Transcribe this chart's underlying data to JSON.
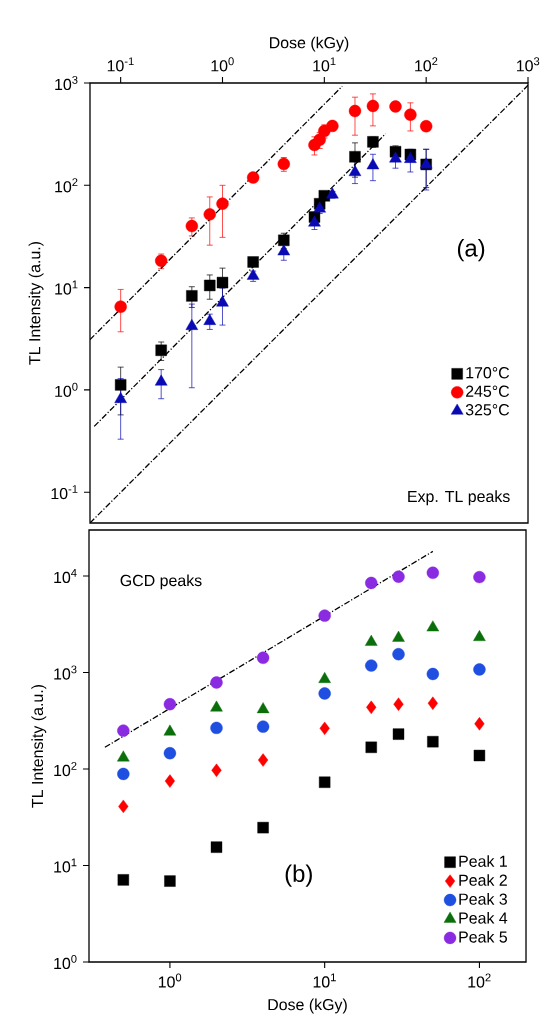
{
  "chart_data": [
    {
      "type": "scatter",
      "xlabel": "Dose (kGy)",
      "ylabel": "TL Intensity (a.u.)",
      "log": "xy",
      "xlim": [
        0.05,
        1000
      ],
      "ylim": [
        0.05,
        1000
      ],
      "xticks": [
        {
          "value": 0.1,
          "label": "10$^{-1}$"
        },
        {
          "value": 1,
          "label": "10$^{0}$"
        },
        {
          "value": 10,
          "label": "10$^{1}$"
        },
        {
          "value": 100,
          "label": "10$^{2}$"
        },
        {
          "value": 1000,
          "label": "10$^{3}$"
        }
      ],
      "yticks": [
        {
          "value": 0.1,
          "label": "10$^{-1}$"
        },
        {
          "value": 1,
          "label": "10$^{0}$"
        },
        {
          "value": 10,
          "label": "10$^{1}$"
        },
        {
          "value": 100,
          "label": "10$^{2}$"
        },
        {
          "value": 1000,
          "label": "10$^{3}$"
        }
      ],
      "legend": "bottom right",
      "annotations": [
        "(a)",
        "Exp. TL peaks"
      ],
      "series": [
        {
          "name": "170°C",
          "color": "#000000",
          "marker": "square",
          "x": [
            0.1,
            0.25,
            0.5,
            0.75,
            1,
            2,
            4,
            8,
            9,
            10,
            12,
            20,
            30,
            50,
            70,
            100
          ],
          "values": [
            1.12,
            2.44,
            8.3,
            10.5,
            11.2,
            17.8,
            29,
            49,
            66,
            79,
            null,
            190,
            266,
            213,
            200,
            160
          ],
          "errors": [
            0.55,
            0.5,
            1.9,
            2.8,
            4.3,
            1.5,
            5,
            null,
            6,
            6,
            null,
            70,
            30,
            30,
            null,
            65
          ]
        },
        {
          "name": "245°C",
          "color": "#ff0000",
          "marker": "circle",
          "x": [
            0.1,
            0.25,
            0.5,
            0.75,
            1,
            2,
            4,
            8,
            9,
            10,
            12,
            20,
            30,
            50,
            70,
            100
          ],
          "values": [
            6.5,
            18.3,
            40,
            52,
            66,
            119,
            162,
            248,
            279,
            340,
            381,
            533,
            597,
            589,
            490,
            378
          ],
          "errors": [
            [
              3.7,
              9.6
            ],
            3,
            8,
            [
              26,
              77
            ],
            [
              31,
              100
            ],
            8,
            25,
            50,
            50,
            50,
            40,
            [
              309,
              727
            ],
            [
              381,
              783
            ],
            40,
            150,
            20
          ]
        },
        {
          "name": "325°C",
          "color": "#0a0ab4",
          "marker": "triangle",
          "x": [
            0.1,
            0.25,
            0.5,
            0.75,
            1,
            2,
            4,
            8,
            9,
            10,
            12,
            20,
            30,
            50,
            70,
            100
          ],
          "values": [
            0.81,
            1.2,
            4.2,
            4.7,
            7.1,
            13,
            22.5,
            43,
            59,
            null,
            81,
            134,
            156,
            182,
            180,
            159
          ],
          "errors": [
            0.48,
            0.38,
            [
              1.05,
              6.9
            ],
            0.8,
            2.8,
            1.5,
            4,
            6,
            6,
            null,
            6,
            [
              104,
              174
            ],
            45,
            35,
            45,
            [
              90,
              225
            ]
          ]
        },
        {
          "type": "line",
          "color": "#000000",
          "marker": "none",
          "line_style": "dashed",
          "x": [
            0.05,
            15
          ],
          "values": [
            3.1,
            930
          ]
        },
        {
          "type": "line",
          "color": "#000000",
          "marker": "none",
          "line_style": "dashed",
          "x": [
            0.055,
            40
          ],
          "values": [
            0.44,
            320
          ]
        },
        {
          "type": "line",
          "color": "#000000",
          "marker": "none",
          "line_style": "dashed",
          "x": [
            0.05,
            1000
          ],
          "values": [
            0.05,
            950
          ]
        }
      ]
    },
    {
      "type": "scatter",
      "xlabel": "Dose (kGy)",
      "ylabel": "TL Intensity (a.u.)",
      "log": "xy",
      "xlim": [
        0.3,
        200
      ],
      "ylim": [
        1,
        30000
      ],
      "xticks": [
        {
          "value": 1,
          "label": "10$^{0}$"
        },
        {
          "value": 10,
          "label": "10$^{1}$"
        },
        {
          "value": 100,
          "label": "10$^{2}$"
        }
      ],
      "yticks": [
        {
          "value": 1,
          "label": "10$^{0}$"
        },
        {
          "value": 10,
          "label": "10$^{1}$"
        },
        {
          "value": 100,
          "label": "10$^{2}$"
        },
        {
          "value": 1000,
          "label": "10$^{3}$"
        },
        {
          "value": 10000,
          "label": "10$^{4}$"
        }
      ],
      "legend": "bottom right",
      "annotations": [
        "GCD peaks",
        "(b)"
      ],
      "series": [
        {
          "name": "Peak 1",
          "color": "#000000",
          "marker": "square",
          "x": [
            0.5,
            1,
            2,
            4,
            10,
            20,
            30,
            50,
            100
          ],
          "values": [
            7.1,
            6.9,
            15.5,
            24.7,
            73,
            168,
            230,
            192,
            138
          ]
        },
        {
          "name": "Peak 2",
          "color": "#ff0000",
          "marker": "diamond",
          "x": [
            0.5,
            1,
            2,
            4,
            10,
            20,
            30,
            50,
            100
          ],
          "values": [
            41,
            75,
            97,
            124,
            264,
            436,
            470,
            481,
            294
          ]
        },
        {
          "name": "Peak 3",
          "color": "#1f4fe0",
          "marker": "circle",
          "x": [
            0.5,
            1,
            2,
            4,
            10,
            20,
            30,
            50,
            100
          ],
          "values": [
            89,
            146,
            267,
            275,
            606,
            1180,
            1550,
            966,
            1075
          ]
        },
        {
          "name": "Peak 4",
          "color": "#0a6e0a",
          "marker": "triangle",
          "x": [
            0.5,
            1,
            2,
            4,
            10,
            20,
            30,
            50,
            100
          ],
          "values": [
            131,
            243,
            431,
            415,
            853,
            2070,
            2280,
            2920,
            2320
          ]
        },
        {
          "name": "Peak 5",
          "color": "#8a2be2",
          "marker": "circle",
          "x": [
            0.5,
            1,
            2,
            4,
            10,
            20,
            30,
            50,
            100
          ],
          "values": [
            250,
            470,
            787,
            1420,
            3890,
            8490,
            9840,
            10800,
            9750
          ]
        },
        {
          "type": "line",
          "color": "#000000",
          "marker": "none",
          "line_style": "dashed",
          "x": [
            0.38,
            50
          ],
          "values": [
            168,
            18000
          ]
        }
      ]
    }
  ]
}
